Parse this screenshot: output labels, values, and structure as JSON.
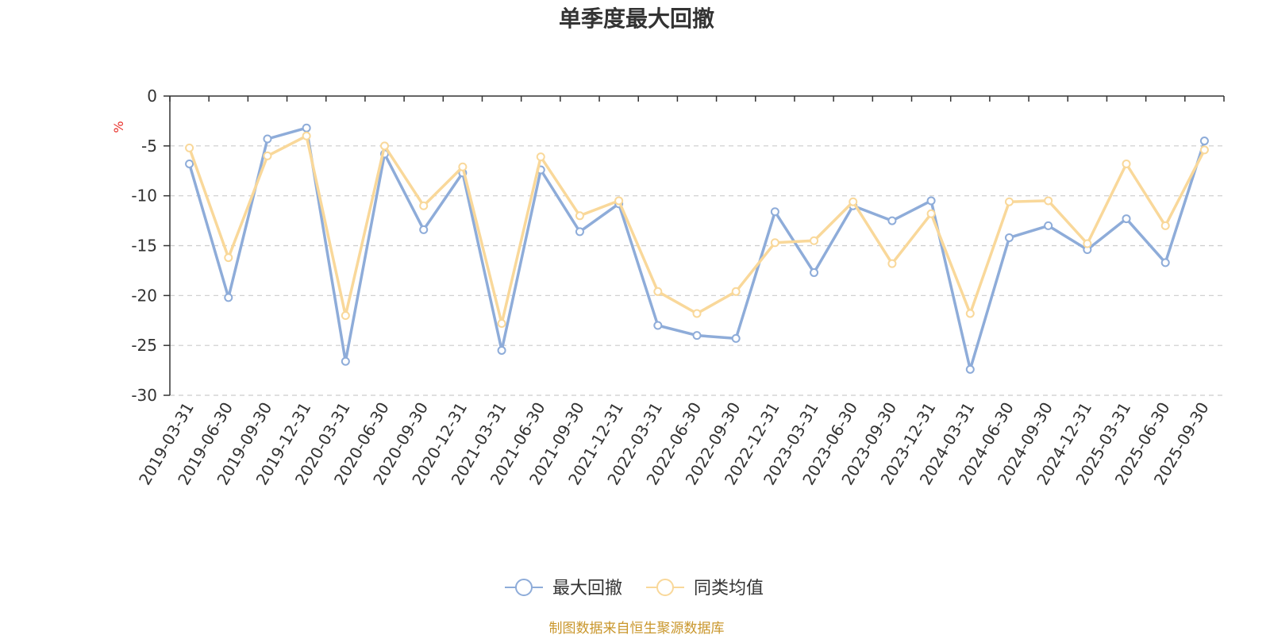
{
  "chart_data": {
    "type": "line",
    "title": "单季度最大回撤",
    "ylabel": "%",
    "ylim": [
      -30,
      0
    ],
    "yticks": [
      0,
      -5,
      -10,
      -15,
      -20,
      -25,
      -30
    ],
    "grid": true,
    "legend_position": "bottom-center",
    "categories": [
      "2019-03-31",
      "2019-06-30",
      "2019-09-30",
      "2019-12-31",
      "2020-03-31",
      "2020-06-30",
      "2020-09-30",
      "2020-12-31",
      "2021-03-31",
      "2021-06-30",
      "2021-09-30",
      "2021-12-31",
      "2022-03-31",
      "2022-06-30",
      "2022-09-30",
      "2022-12-31",
      "2023-03-31",
      "2023-06-30",
      "2023-09-30",
      "2023-12-31",
      "2024-03-31",
      "2024-06-30",
      "2024-09-30",
      "2024-12-31",
      "2025-03-31",
      "2025-06-30",
      "2025-09-30"
    ],
    "series": [
      {
        "name": "最大回撤",
        "color": "#8eacd9",
        "values": [
          -6.8,
          -20.2,
          -4.3,
          -3.2,
          -26.6,
          -5.8,
          -13.4,
          -7.7,
          -25.5,
          -7.4,
          -13.6,
          -10.8,
          -23.0,
          -24.0,
          -24.3,
          -11.6,
          -17.7,
          -11.0,
          -12.5,
          -10.5,
          -27.4,
          -14.2,
          -13.0,
          -15.4,
          -12.3,
          -16.7,
          -4.5
        ]
      },
      {
        "name": "同类均值",
        "color": "#f9d89a",
        "values": [
          -5.2,
          -16.2,
          -6.0,
          -4.0,
          -22.0,
          -5.0,
          -11.0,
          -7.1,
          -22.8,
          -6.1,
          -12.0,
          -10.5,
          -19.6,
          -21.8,
          -19.6,
          -14.7,
          -14.5,
          -10.6,
          -16.8,
          -11.8,
          -21.8,
          -10.6,
          -10.5,
          -14.8,
          -6.8,
          -13.0,
          -5.4
        ]
      }
    ]
  },
  "source_text": "制图数据来自恒生聚源数据库"
}
